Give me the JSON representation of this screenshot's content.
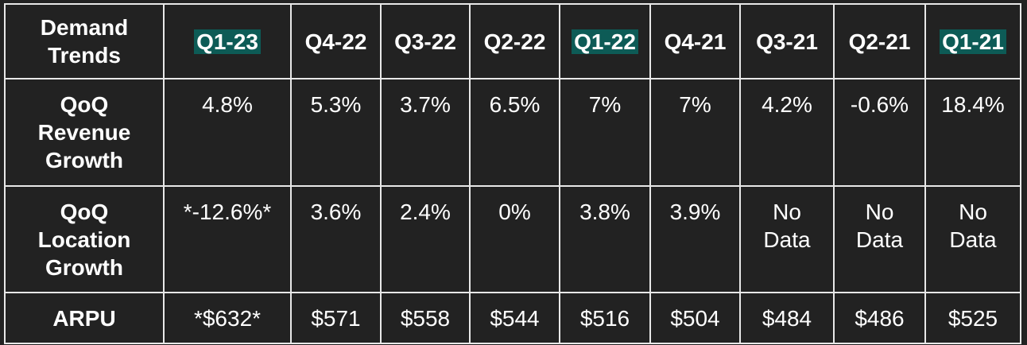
{
  "table": {
    "corner": "Demand Trends",
    "highlight_color": "#0d5b56",
    "columns": [
      {
        "label": "Q1-23",
        "highlight": true
      },
      {
        "label": "Q4-22",
        "highlight": false
      },
      {
        "label": "Q3-22",
        "highlight": false
      },
      {
        "label": "Q2-22",
        "highlight": false
      },
      {
        "label": "Q1-22",
        "highlight": true
      },
      {
        "label": "Q4-21",
        "highlight": false
      },
      {
        "label": "Q3-21",
        "highlight": false
      },
      {
        "label": "Q2-21",
        "highlight": false
      },
      {
        "label": "Q1-21",
        "highlight": true
      }
    ],
    "rows": [
      {
        "label": "QoQ Revenue Growth",
        "cells": [
          "4.8%",
          "5.3%",
          "3.7%",
          "6.5%",
          "7%",
          "7%",
          "4.2%",
          "-0.6%",
          "18.4%"
        ]
      },
      {
        "label": "QoQ Location Growth",
        "cells": [
          "*-12.6%*",
          "3.6%",
          "2.4%",
          "0%",
          "3.8%",
          "3.9%",
          "No Data",
          "No Data",
          "No Data"
        ]
      },
      {
        "label": "ARPU",
        "cells": [
          "*$632*",
          "$571",
          "$558",
          "$544",
          "$516",
          "$504",
          "$484",
          "$486",
          "$525"
        ]
      }
    ]
  }
}
